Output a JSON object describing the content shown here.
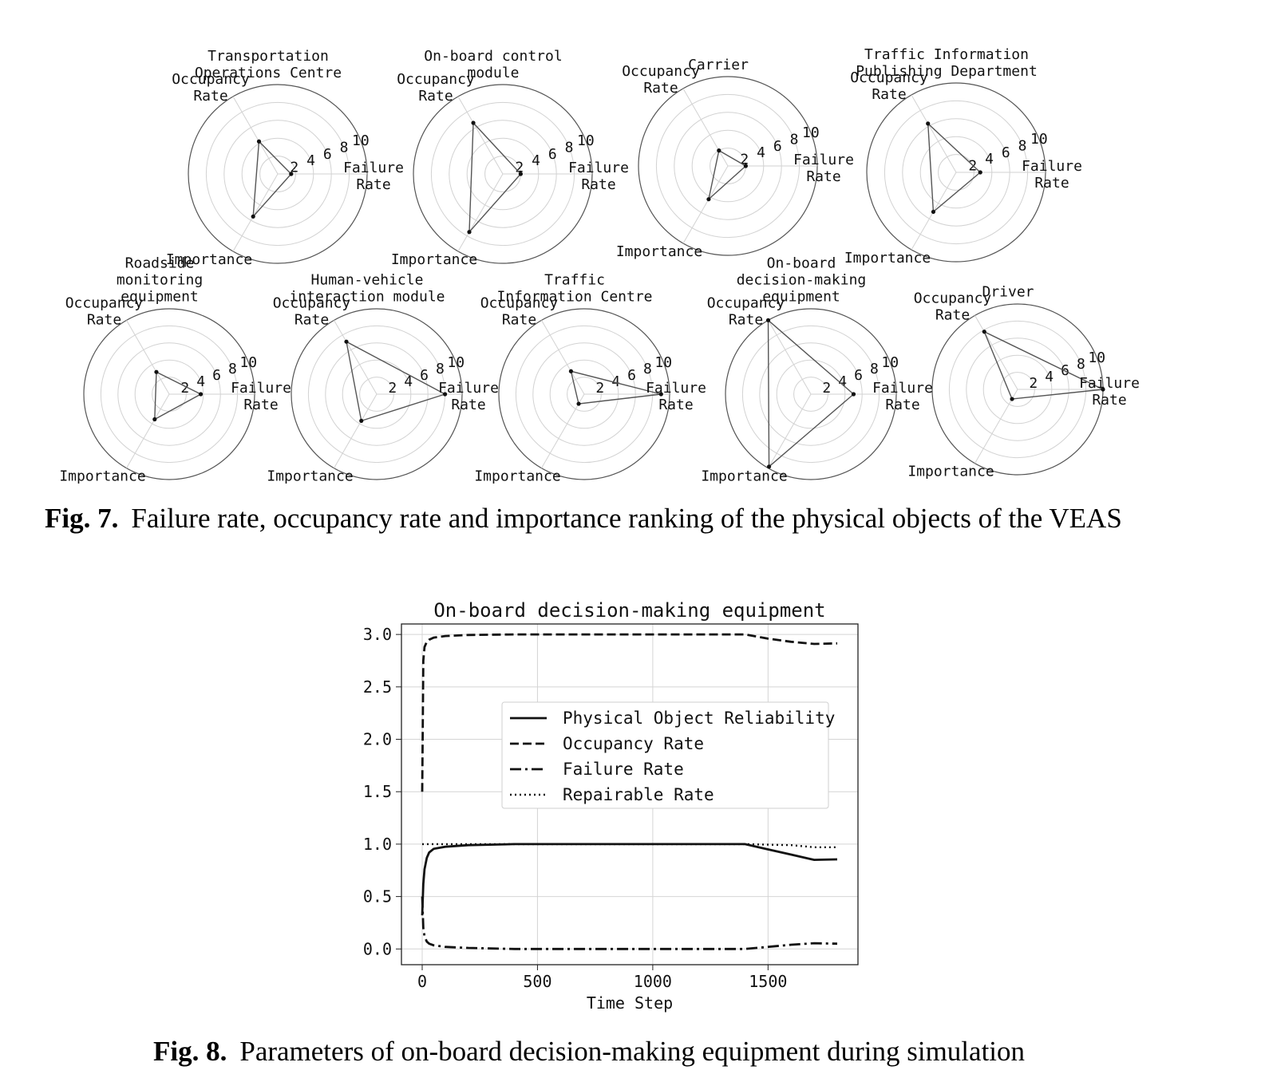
{
  "figure7": {
    "caption_label": "Fig. 7.",
    "caption_text": "Failure rate, occupancy rate and importance ranking of the physical objects of the VEAS"
  },
  "figure8": {
    "caption_label": "Fig. 8.",
    "caption_text": "Parameters of on-board decision-making equipment during simulation"
  },
  "chart_data": [
    {
      "type": "radar",
      "axes": [
        "Failure Rate",
        "Occupancy Rate",
        "Importance"
      ],
      "radial_ticks": [
        "2",
        "4",
        "6",
        "8",
        "10"
      ],
      "rlim": [
        0,
        10
      ],
      "grid": true,
      "charts": [
        {
          "title": "Transportation Operations Centre",
          "values": [
            1.5,
            4.2,
            5.5
          ]
        },
        {
          "title": "On-board control module",
          "values": [
            2.0,
            6.6,
            7.5
          ]
        },
        {
          "title": "Carrier",
          "values": [
            2.0,
            2.0,
            4.3
          ]
        },
        {
          "title": "Traffic Information Publishing Department",
          "values": [
            2.7,
            6.3,
            5.1
          ]
        },
        {
          "title": "Roadside monitoring equipment",
          "values": [
            3.7,
            3.0,
            3.4
          ]
        },
        {
          "title": "Human-vehicle interaction module",
          "values": [
            8.0,
            7.1,
            3.6
          ]
        },
        {
          "title": "Traffic Information Centre",
          "values": [
            9.0,
            3.1,
            1.3
          ]
        },
        {
          "title": "On-board decision-making equipment",
          "values": [
            5.0,
            10.0,
            9.8
          ]
        },
        {
          "title": "Driver",
          "values": [
            10.0,
            7.8,
            1.3
          ]
        }
      ]
    },
    {
      "type": "line",
      "title": "On-board decision-making equipment",
      "xlabel": "Time Step",
      "ylabel": "",
      "xlim": [
        -90,
        1890
      ],
      "ylim": [
        -0.15,
        3.1
      ],
      "xticks": [
        "0",
        "500",
        "1000",
        "1500"
      ],
      "yticks": [
        "0.0",
        "0.5",
        "1.0",
        "1.5",
        "2.0",
        "2.5",
        "3.0"
      ],
      "grid": true,
      "legend_position": "center",
      "series": [
        {
          "name": "Physical Object Reliability",
          "style": "solid",
          "x": [
            0,
            5,
            10,
            20,
            30,
            50,
            100,
            200,
            400,
            800,
            1200,
            1400,
            1500,
            1600,
            1700,
            1800
          ],
          "y": [
            0.32,
            0.62,
            0.76,
            0.87,
            0.92,
            0.955,
            0.975,
            0.99,
            1.0,
            1.0,
            1.0,
            1.0,
            0.95,
            0.9,
            0.85,
            0.855
          ]
        },
        {
          "name": "Occupancy Rate",
          "style": "dashed",
          "x": [
            0,
            5,
            10,
            20,
            30,
            50,
            100,
            200,
            400,
            800,
            1200,
            1400,
            1500,
            1600,
            1700,
            1800
          ],
          "y": [
            1.5,
            2.75,
            2.88,
            2.93,
            2.95,
            2.97,
            2.985,
            2.995,
            3.0,
            3.0,
            3.0,
            3.0,
            2.96,
            2.93,
            2.91,
            2.915
          ]
        },
        {
          "name": "Failure Rate",
          "style": "dashdot",
          "x": [
            0,
            5,
            10,
            20,
            30,
            50,
            100,
            200,
            400,
            800,
            1200,
            1400,
            1500,
            1600,
            1700,
            1800
          ],
          "y": [
            0.5,
            0.2,
            0.12,
            0.07,
            0.05,
            0.035,
            0.02,
            0.01,
            0.0,
            0.0,
            0.0,
            0.0,
            0.02,
            0.04,
            0.055,
            0.05
          ]
        },
        {
          "name": "Repairable Rate",
          "style": "dotted",
          "x": [
            0,
            400,
            800,
            1200,
            1400,
            1500,
            1600,
            1700,
            1800
          ],
          "y": [
            1.0,
            1.0,
            1.0,
            1.0,
            1.0,
            0.995,
            0.99,
            0.97,
            0.97
          ]
        }
      ]
    }
  ]
}
